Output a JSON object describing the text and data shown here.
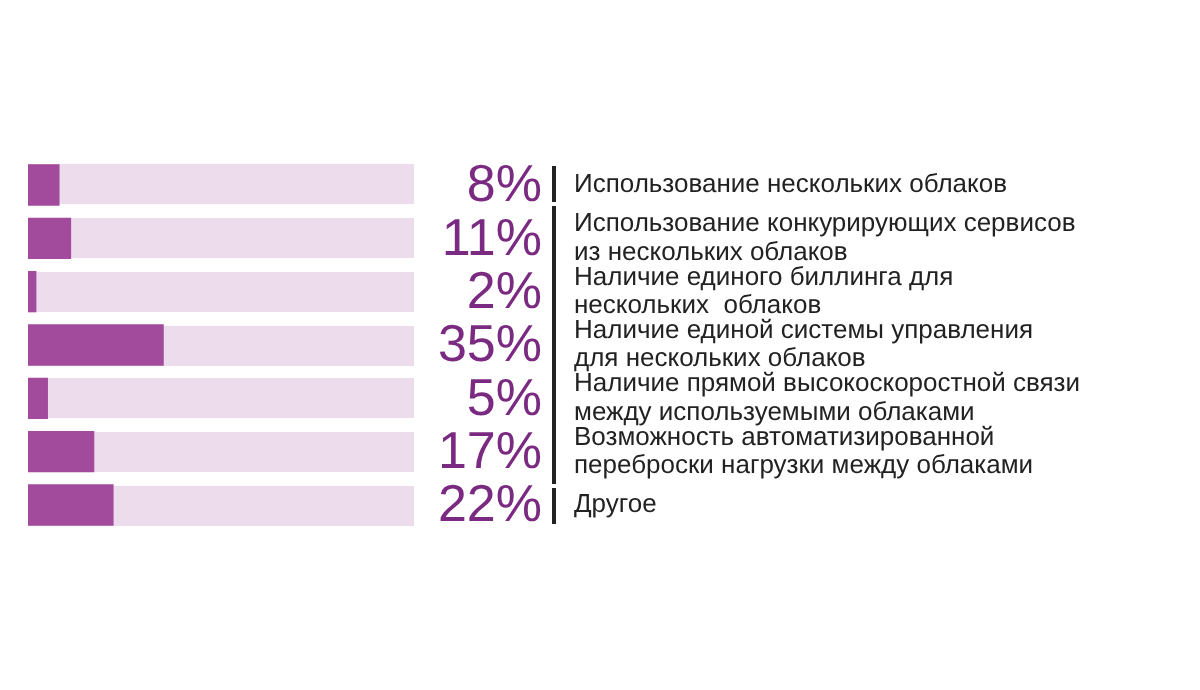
{
  "chart_data": {
    "type": "bar",
    "orientation": "horizontal",
    "categories": [
      "Использование нескольких облаков",
      "Использование конкурирующих сервисов из нескольких облаков",
      "Наличие единого биллинга для нескольких  облаков",
      "Наличие единой системы управления для нескольких облаков",
      "Наличие прямой высокоскоростной связи между используемыми облаками",
      "Возможность автоматизированной переброски нагрузки между облаками",
      "Другое"
    ],
    "values": [
      8,
      11,
      2,
      35,
      5,
      17,
      22
    ],
    "color": "#a24a9c",
    "value_labels": [
      "8%",
      "11%",
      "2%",
      "35%",
      "5%",
      "17%",
      "22%"
    ],
    "tick_labels": "y"
  }
}
